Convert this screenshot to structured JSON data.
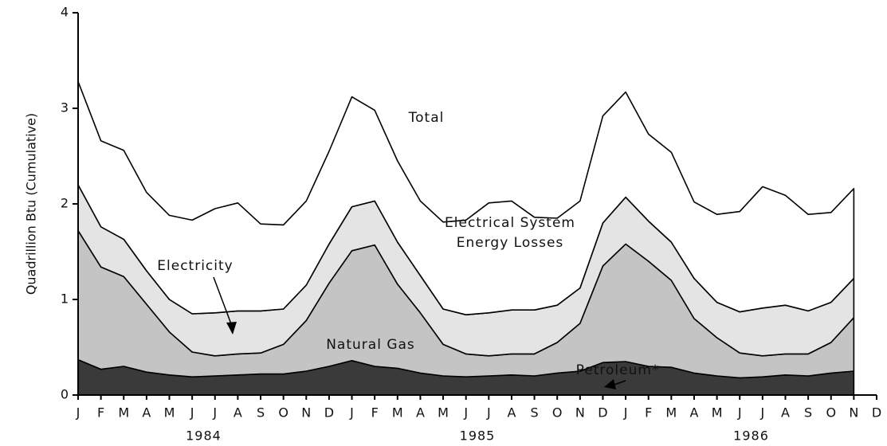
{
  "chart_data": {
    "type": "stacked_area",
    "y_label": "Quadrillion Btu (Cumulative)",
    "categories": [
      "J",
      "F",
      "M",
      "A",
      "M",
      "J",
      "J",
      "A",
      "S",
      "O",
      "N",
      "D",
      "J",
      "F",
      "M",
      "A",
      "M",
      "J",
      "J",
      "A",
      "S",
      "O",
      "N",
      "D",
      "J",
      "F",
      "M",
      "A",
      "M",
      "J",
      "J",
      "A",
      "S",
      "O",
      "N",
      "D"
    ],
    "year_labels": [
      "1984",
      "1985",
      "1986"
    ],
    "ylim": [
      0,
      4
    ],
    "yticks": [
      0,
      1,
      2,
      3,
      4
    ],
    "grid": false,
    "annotations": [
      "Total"
    ],
    "series": [
      {
        "name": "Petroleum*",
        "color": "#3a3a3a",
        "values": [
          0.37,
          0.27,
          0.3,
          0.24,
          0.21,
          0.19,
          0.2,
          0.21,
          0.22,
          0.22,
          0.25,
          0.3,
          0.36,
          0.3,
          0.28,
          0.23,
          0.2,
          0.19,
          0.2,
          0.21,
          0.2,
          0.23,
          0.25,
          0.34,
          0.35,
          0.3,
          0.29,
          0.23,
          0.2,
          0.18,
          0.19,
          0.21,
          0.2,
          0.23,
          0.25,
          null
        ]
      },
      {
        "name": "Natural Gas",
        "color": "#c4c4c4",
        "values": [
          1.35,
          1.07,
          0.94,
          0.71,
          0.45,
          0.26,
          0.21,
          0.22,
          0.22,
          0.31,
          0.53,
          0.87,
          1.15,
          1.27,
          0.88,
          0.63,
          0.33,
          0.24,
          0.21,
          0.22,
          0.23,
          0.32,
          0.5,
          1.01,
          1.23,
          1.1,
          0.91,
          0.57,
          0.4,
          0.26,
          0.22,
          0.22,
          0.23,
          0.32,
          0.56,
          null
        ]
      },
      {
        "name": "Electricity",
        "color": "#e4e4e4",
        "values": [
          0.48,
          0.42,
          0.39,
          0.35,
          0.34,
          0.4,
          0.45,
          0.45,
          0.44,
          0.37,
          0.37,
          0.41,
          0.46,
          0.46,
          0.44,
          0.39,
          0.37,
          0.41,
          0.45,
          0.46,
          0.46,
          0.39,
          0.37,
          0.45,
          0.49,
          0.42,
          0.4,
          0.42,
          0.37,
          0.43,
          0.5,
          0.51,
          0.45,
          0.42,
          0.41,
          null
        ]
      },
      {
        "name": "Electrical System Energy Losses",
        "color": "#ffffff",
        "values": [
          1.08,
          0.9,
          0.93,
          0.82,
          0.88,
          0.98,
          1.09,
          1.13,
          0.91,
          0.88,
          0.88,
          0.97,
          1.15,
          0.95,
          0.85,
          0.78,
          0.91,
          0.99,
          1.15,
          1.14,
          0.97,
          0.91,
          0.91,
          1.12,
          1.1,
          0.91,
          0.94,
          0.8,
          0.92,
          1.05,
          1.27,
          1.15,
          1.01,
          0.94,
          0.94,
          null
        ]
      }
    ]
  }
}
